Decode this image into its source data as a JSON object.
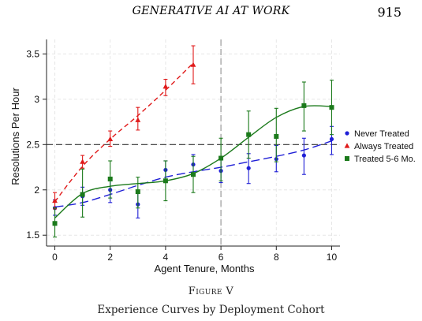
{
  "running_head": {
    "title": "GENERATIVE AI AT WORK",
    "page": "915"
  },
  "figure": {
    "label": "Figure V",
    "caption": "Experience Curves by Deployment Cohort"
  },
  "chart_data": {
    "type": "scatter",
    "xlabel": "Agent Tenure, Months",
    "ylabel": "Resolutions Per Hour",
    "xlim": [
      -0.3,
      10.3
    ],
    "ylim": [
      1.38,
      3.66
    ],
    "xticks": [
      0,
      2,
      4,
      6,
      8,
      10
    ],
    "yticks": [
      1.5,
      2,
      2.5,
      3,
      3.5
    ],
    "ytick_labels": [
      "1.5",
      "2",
      "2.5",
      "3",
      "3.5"
    ],
    "grid": true,
    "legend_position": "right",
    "reference_lines": {
      "horizontal_y": 2.5,
      "vertical_x": 6
    },
    "series": [
      {
        "name": "Never Treated",
        "color": "#1f1fd6",
        "marker": "circle",
        "line": "long-dash",
        "x": [
          0,
          1,
          2,
          3,
          4,
          5,
          6,
          7,
          8,
          9,
          10
        ],
        "y": [
          1.8,
          1.93,
          2.0,
          1.84,
          2.22,
          2.28,
          2.21,
          2.24,
          2.34,
          2.38,
          2.56
        ],
        "lo": [
          1.72,
          1.83,
          1.86,
          1.69,
          2.1,
          2.16,
          2.08,
          2.07,
          2.2,
          2.17,
          2.39
        ],
        "hi": [
          1.89,
          2.03,
          2.14,
          1.98,
          2.32,
          2.39,
          2.33,
          2.4,
          2.49,
          2.57,
          2.7
        ],
        "fit": [
          1.81,
          1.86,
          1.95,
          2.05,
          2.14,
          2.2,
          2.25,
          2.31,
          2.37,
          2.44,
          2.54
        ]
      },
      {
        "name": "Always Treated",
        "color": "#e01a1a",
        "marker": "triangle",
        "line": "short-dash",
        "x": [
          0,
          1,
          2,
          3,
          4,
          5
        ],
        "y": [
          1.88,
          2.31,
          2.56,
          2.77,
          3.14,
          3.38
        ],
        "lo": [
          1.79,
          2.24,
          2.48,
          2.66,
          3.04,
          3.17
        ],
        "hi": [
          1.97,
          2.38,
          2.65,
          2.91,
          3.22,
          3.59
        ],
        "fit": [
          1.87,
          2.26,
          2.56,
          2.82,
          3.1,
          3.4
        ]
      },
      {
        "name": "Treated 5-6 Mo.",
        "color": "#1b7a1b",
        "marker": "square",
        "line": "solid",
        "x": [
          0,
          1,
          2,
          3,
          4,
          5,
          6,
          7,
          8,
          9,
          10
        ],
        "y": [
          1.63,
          1.95,
          2.12,
          1.98,
          2.1,
          2.17,
          2.35,
          2.61,
          2.59,
          2.93,
          2.91
        ],
        "lo": [
          1.48,
          1.7,
          1.91,
          1.8,
          1.88,
          1.97,
          2.1,
          2.35,
          2.31,
          2.65,
          2.61
        ],
        "hi": [
          1.8,
          2.23,
          2.32,
          2.14,
          2.32,
          2.37,
          2.57,
          2.87,
          2.9,
          3.19,
          3.21
        ],
        "fit": [
          1.69,
          1.96,
          2.04,
          2.07,
          2.1,
          2.18,
          2.35,
          2.58,
          2.8,
          2.92,
          2.92
        ]
      }
    ]
  }
}
